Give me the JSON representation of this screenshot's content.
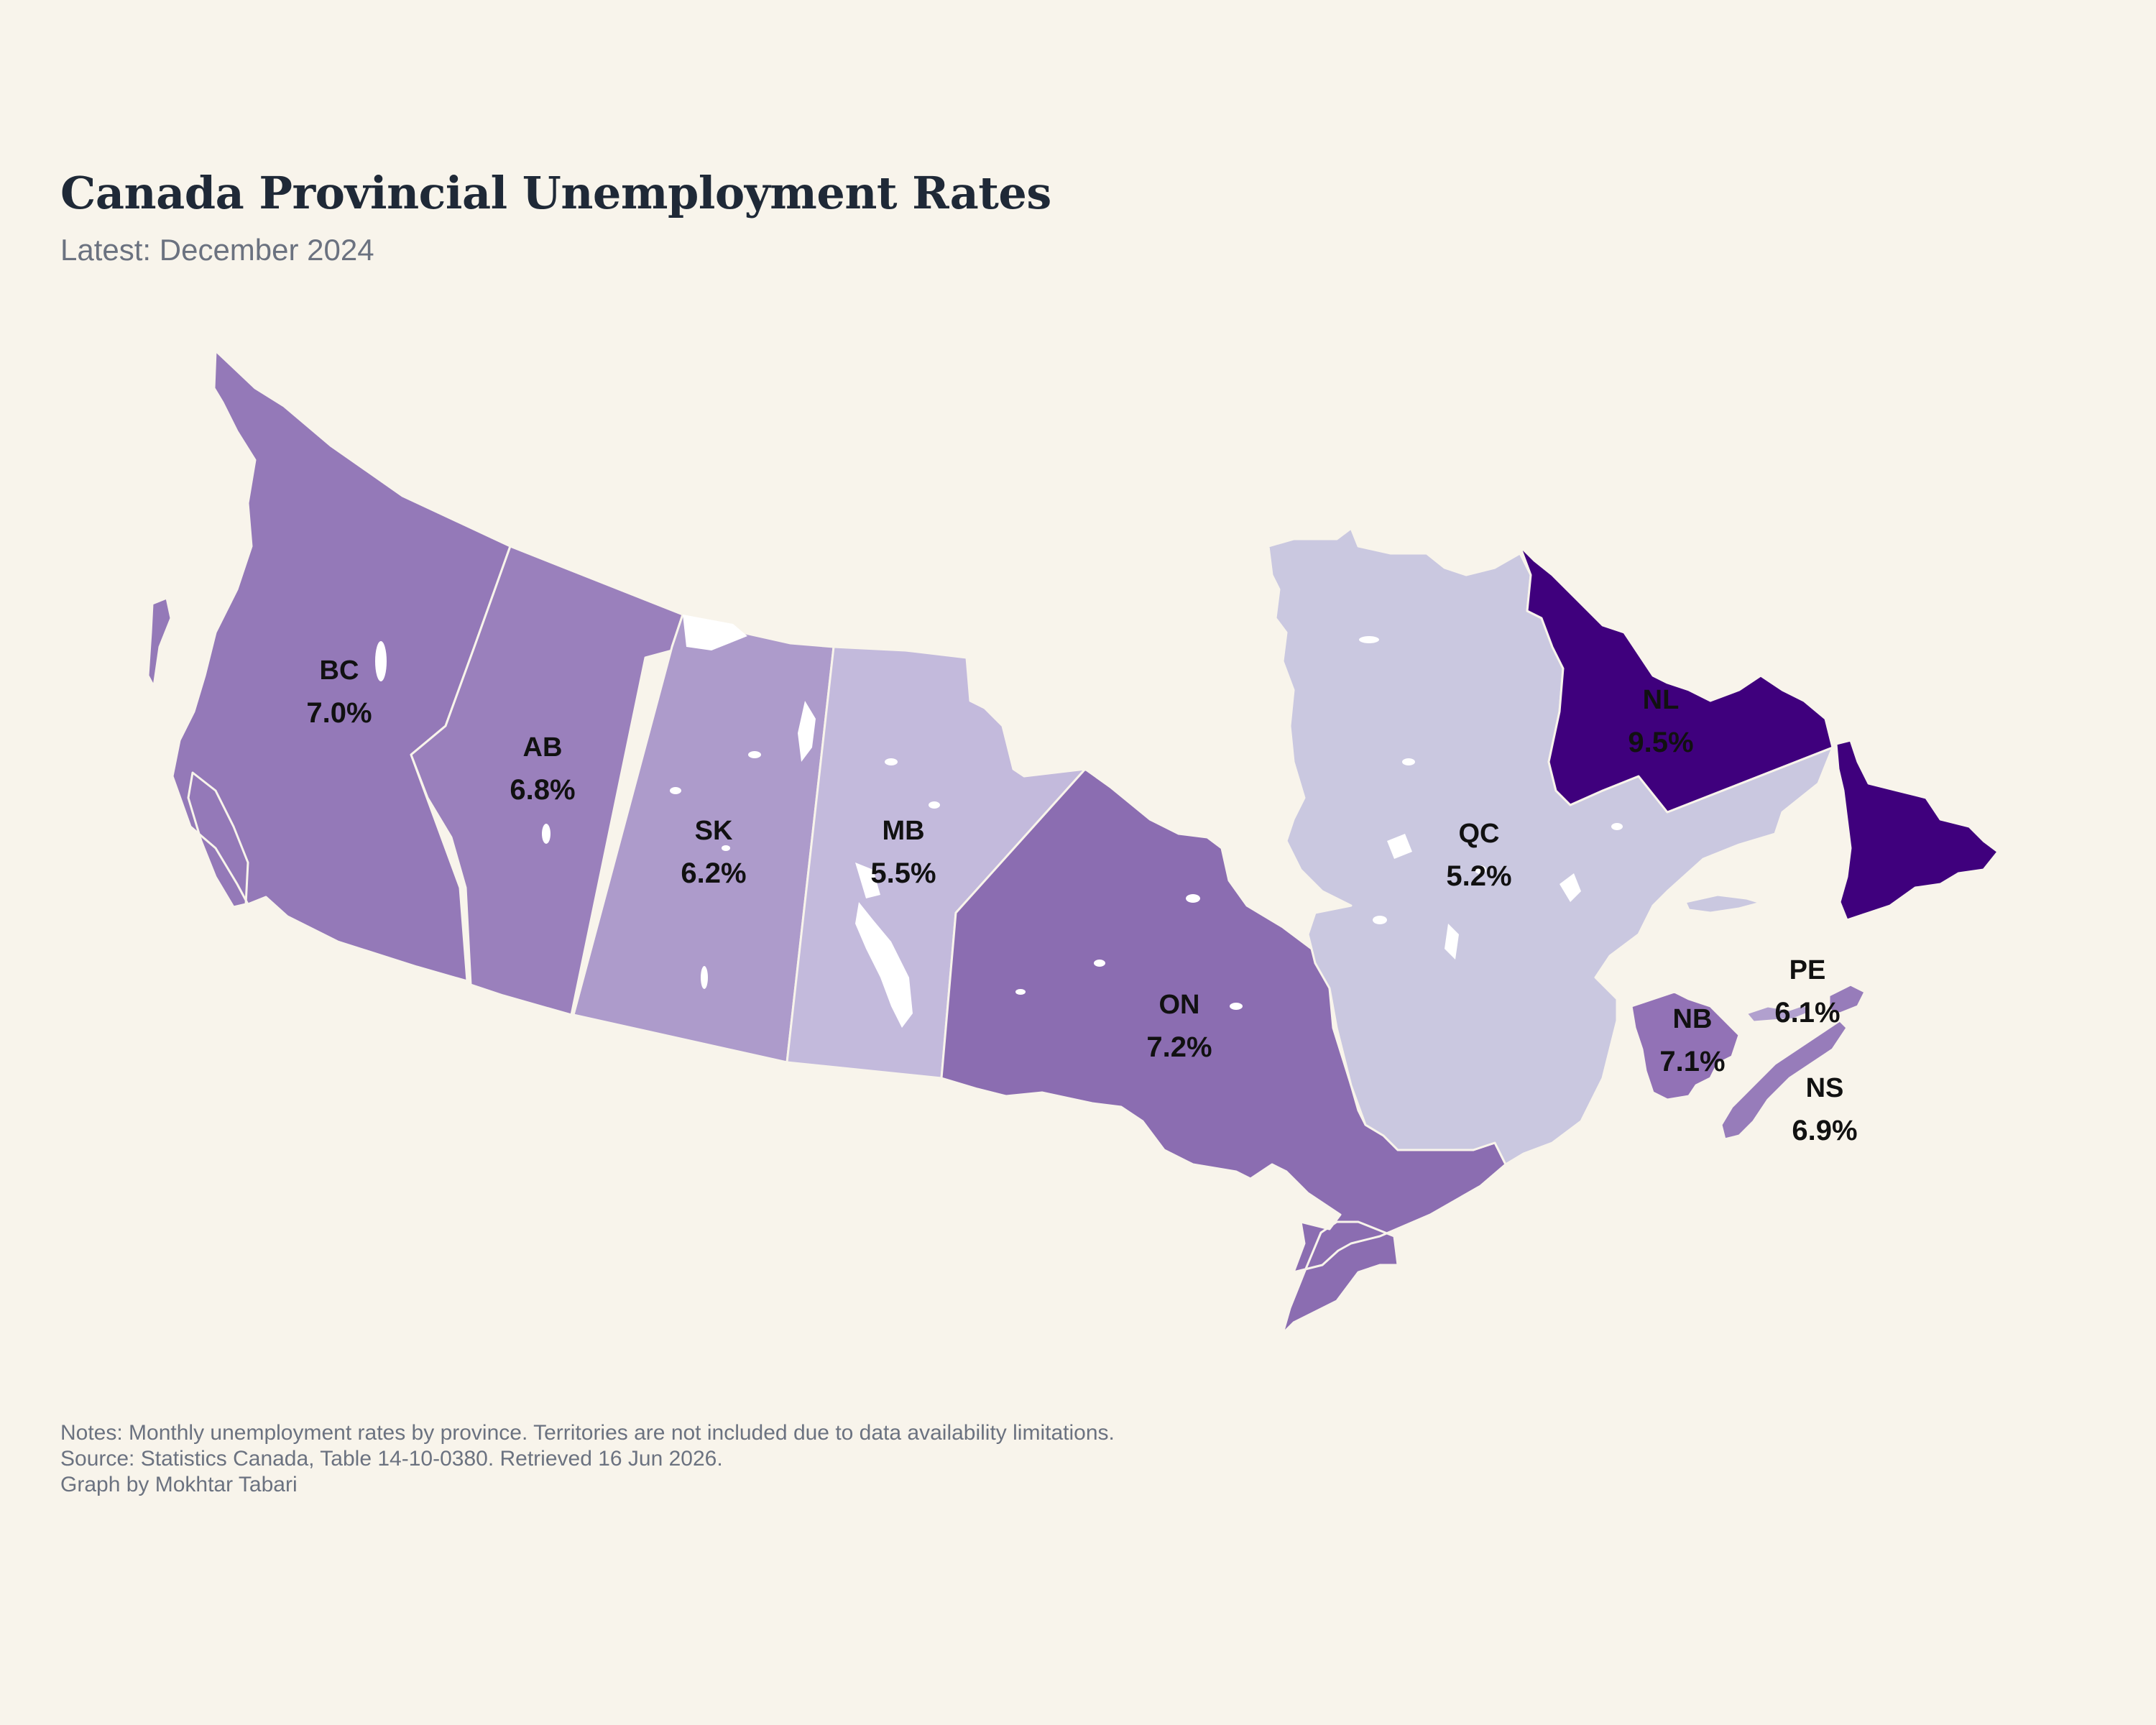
{
  "title": "Canada Provincial Unemployment Rates",
  "subtitle": "Latest: December 2024",
  "notes": [
    "Notes: Monthly unemployment rates by province. Territories are not included due to data availability limitations.",
    "Source: Statistics Canada, Table 14-10-0380. Retrieved 16 Jun 2026.",
    "Graph by Mokhtar Tabari"
  ],
  "chart_data": {
    "type": "choropleth",
    "color_scale": "purples",
    "regions": [
      {
        "code": "BC",
        "value": 7.0,
        "label": "7.0%",
        "color": "#9479b8"
      },
      {
        "code": "AB",
        "value": 6.8,
        "label": "6.8%",
        "color": "#9a80bc"
      },
      {
        "code": "SK",
        "value": 6.2,
        "label": "6.2%",
        "color": "#ad9bcb"
      },
      {
        "code": "MB",
        "value": 5.5,
        "label": "5.5%",
        "color": "#c3badc"
      },
      {
        "code": "ON",
        "value": 7.2,
        "label": "7.2%",
        "color": "#8b6db1"
      },
      {
        "code": "QC",
        "value": 5.2,
        "label": "5.2%",
        "color": "#cac8e0"
      },
      {
        "code": "NL",
        "value": 9.5,
        "label": "9.5%",
        "color": "#3f007d"
      },
      {
        "code": "NB",
        "value": 7.1,
        "label": "7.1%",
        "color": "#9272b6"
      },
      {
        "code": "NS",
        "value": 6.9,
        "label": "6.9%",
        "color": "#977cba"
      },
      {
        "code": "PE",
        "value": 6.1,
        "label": "6.1%",
        "color": "#b1a0ce"
      }
    ]
  }
}
